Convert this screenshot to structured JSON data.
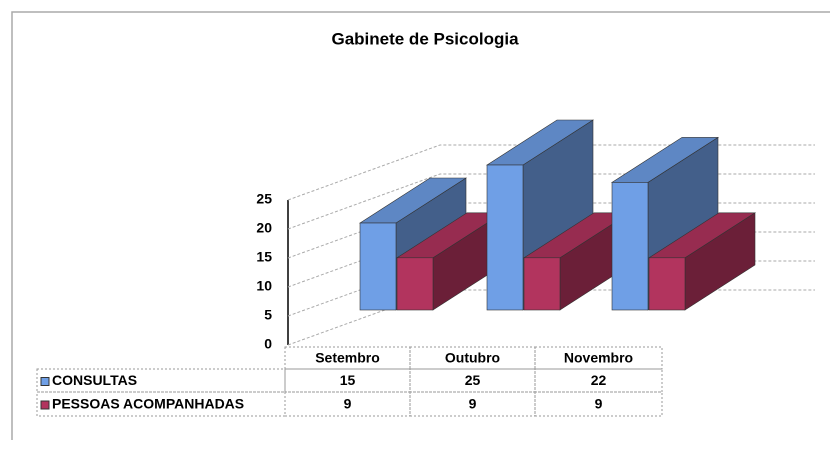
{
  "chart_data": {
    "type": "bar3d",
    "title": "Gabinete de Psicologia",
    "categories": [
      "Setembro",
      "Outubro",
      "Novembro"
    ],
    "series": [
      {
        "name": "CONSULTAS",
        "color": "#6f9fe6",
        "values": [
          15,
          25,
          22
        ]
      },
      {
        "name": "PESSOAS ACOMPANHADAS",
        "color": "#b2345e",
        "values": [
          9,
          9,
          9
        ]
      }
    ],
    "ylim": [
      0,
      25
    ],
    "yticks": [
      0,
      5,
      10,
      15,
      20,
      25
    ],
    "grid": true
  }
}
